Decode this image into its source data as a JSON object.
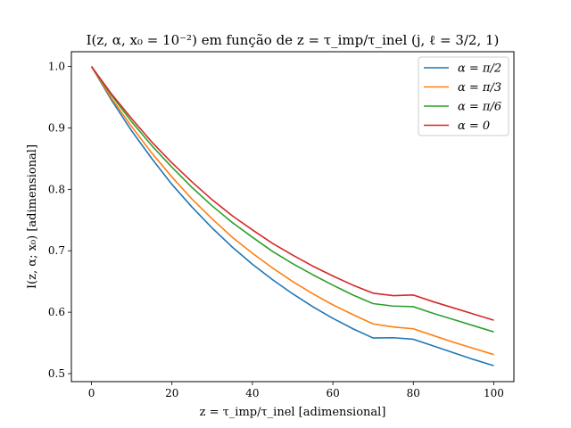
{
  "chart_data": {
    "type": "line",
    "title": "I(z, α, x₀ = 10⁻²) em função de z = τ_imp/τ_inel (j, ℓ = 3/2, 1)",
    "xlabel": "z = τ_imp/τ_inel [adimensional]",
    "ylabel": "I(z, α; x₀) [adimensional]",
    "xlim": [
      -5,
      105
    ],
    "ylim": [
      0.487,
      1.024
    ],
    "x_ticks": [
      0,
      20,
      40,
      60,
      80,
      100
    ],
    "y_ticks": [
      0.5,
      0.6,
      0.7,
      0.8,
      0.9,
      1.0
    ],
    "x_tick_labels": [
      "0",
      "20",
      "40",
      "60",
      "80",
      "100"
    ],
    "y_tick_labels": [
      "0.5",
      "0.6",
      "0.7",
      "0.8",
      "0.9",
      "1.0"
    ],
    "grid": false,
    "legend_position": "top-right",
    "x": [
      0,
      5,
      10,
      15,
      20,
      25,
      30,
      35,
      40,
      45,
      50,
      55,
      60,
      65,
      70,
      75,
      80,
      85,
      90,
      95,
      100
    ],
    "series": [
      {
        "name": "α = π/2",
        "color": "#1f77b4",
        "values": [
          1.0,
          0.945,
          0.895,
          0.85,
          0.808,
          0.771,
          0.737,
          0.706,
          0.678,
          0.653,
          0.63,
          0.609,
          0.59,
          0.573,
          0.558,
          0.5585,
          0.556,
          0.545,
          0.534,
          0.523,
          0.513
        ]
      },
      {
        "name": "α = π/3",
        "color": "#ff7f0e",
        "values": [
          1.0,
          0.948,
          0.902,
          0.859,
          0.82,
          0.784,
          0.752,
          0.722,
          0.696,
          0.672,
          0.65,
          0.63,
          0.612,
          0.596,
          0.581,
          0.576,
          0.573,
          0.562,
          0.551,
          0.541,
          0.531
        ]
      },
      {
        "name": "α = π/6",
        "color": "#2ca02c",
        "values": [
          1.0,
          0.953,
          0.91,
          0.871,
          0.836,
          0.803,
          0.773,
          0.746,
          0.722,
          0.699,
          0.679,
          0.661,
          0.644,
          0.628,
          0.614,
          0.61,
          0.609,
          0.598,
          0.588,
          0.578,
          0.568
        ]
      },
      {
        "name": "α = 0",
        "color": "#d62728",
        "values": [
          1.0,
          0.955,
          0.915,
          0.877,
          0.843,
          0.812,
          0.783,
          0.757,
          0.734,
          0.712,
          0.693,
          0.675,
          0.659,
          0.644,
          0.631,
          0.627,
          0.628,
          0.617,
          0.607,
          0.597,
          0.587
        ]
      }
    ]
  }
}
